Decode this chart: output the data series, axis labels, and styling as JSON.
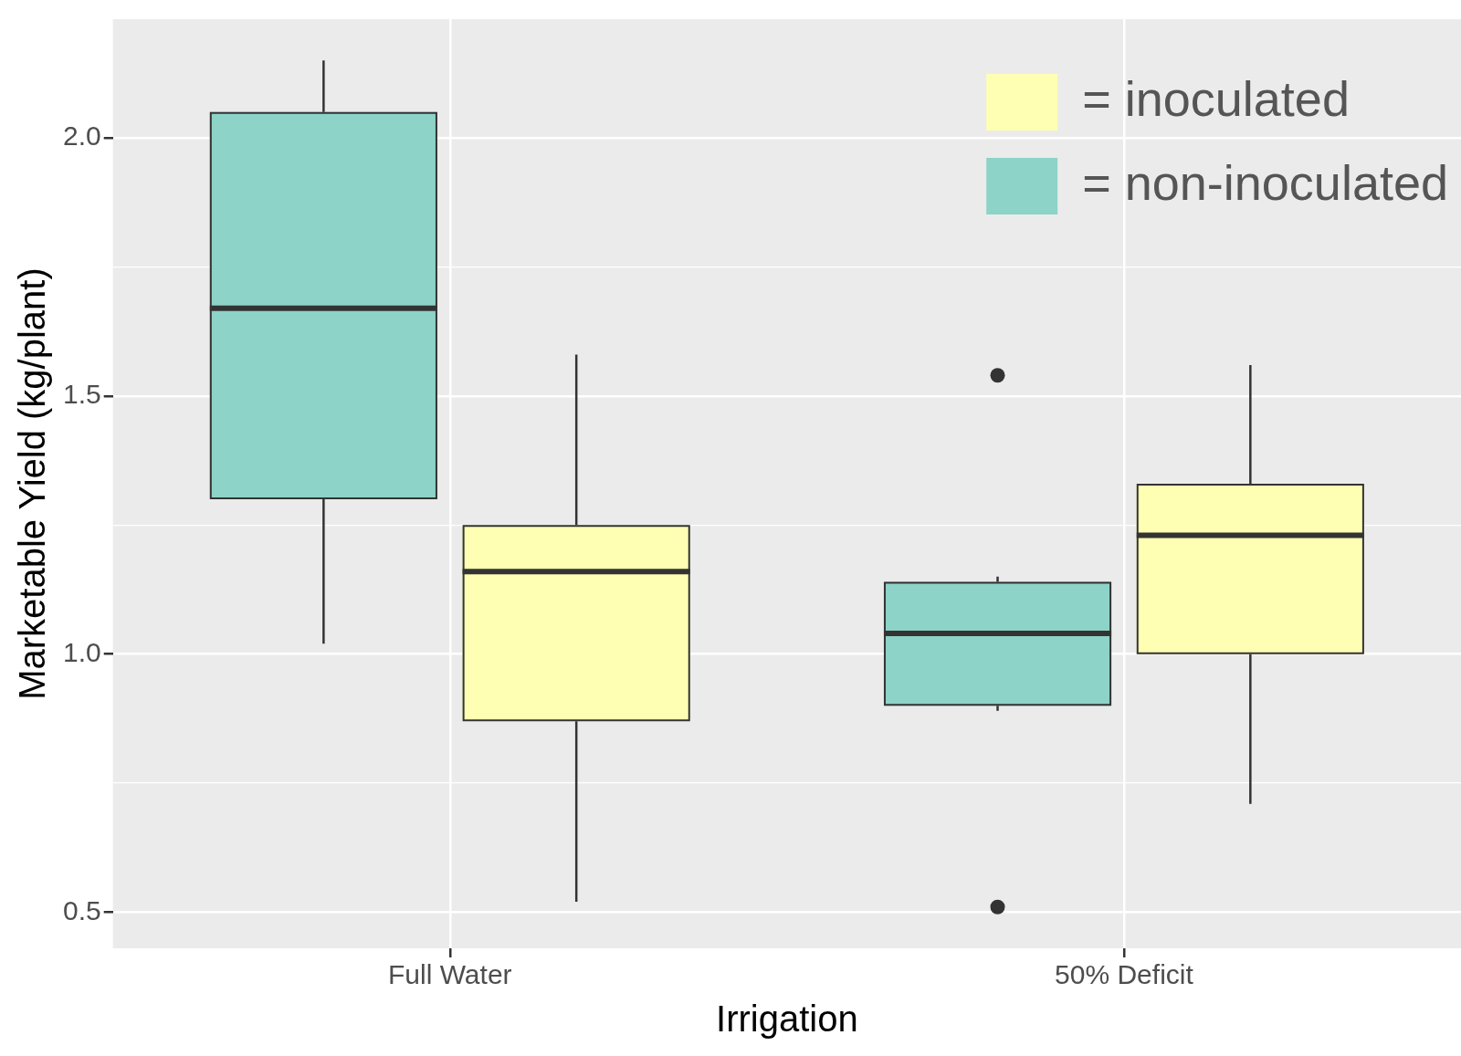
{
  "chart_data": {
    "type": "box",
    "xlabel": "Irrigation",
    "ylabel": "Marketable Yield (kg/plant)",
    "categories": [
      "Full Water",
      "50% Deficit"
    ],
    "series": [
      {
        "name": "= non-inoculated",
        "color": "#8dd3c7",
        "boxes": [
          {
            "low": 1.02,
            "q1": 1.3,
            "median": 1.67,
            "q3": 2.05,
            "high": 2.15
          },
          {
            "low": 0.89,
            "q1": 0.9,
            "median": 1.04,
            "q3": 1.14,
            "high": 1.15,
            "outliers": [
              1.54,
              0.51
            ]
          }
        ]
      },
      {
        "name": "= inoculated",
        "color": "#ffffb3",
        "boxes": [
          {
            "low": 0.52,
            "q1": 0.87,
            "median": 1.16,
            "q3": 1.25,
            "high": 1.58
          },
          {
            "low": 0.71,
            "q1": 1.0,
            "median": 1.23,
            "q3": 1.33,
            "high": 1.56
          }
        ]
      }
    ],
    "ylim": [
      0.43,
      2.23
    ],
    "yticks": [
      {
        "value": 0.5,
        "label": "0.5"
      },
      {
        "value": 0.75,
        "label": null
      },
      {
        "value": 1,
        "label": "1.0"
      },
      {
        "value": 1.25,
        "label": null
      },
      {
        "value": 1.5,
        "label": "1.5"
      },
      {
        "value": 1.75,
        "label": null
      },
      {
        "value": 2,
        "label": "2.0"
      }
    ],
    "grid": true,
    "legend": "top right"
  }
}
